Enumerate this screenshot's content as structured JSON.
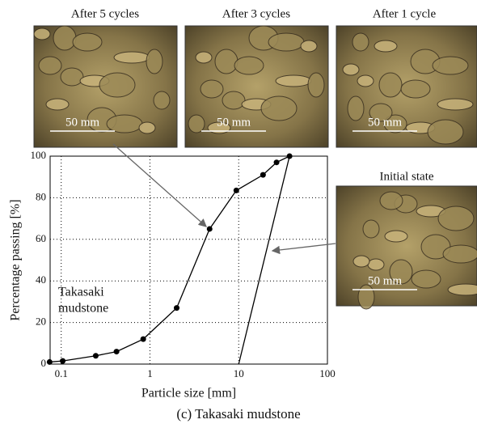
{
  "chart_data": {
    "type": "line",
    "x_label": "Particle size [mm]",
    "y_label": "Percentage passing [%]",
    "caption": "(c) Takasaki mudstone",
    "annotation": [
      "Takasaki",
      "mudstone"
    ],
    "log_x": true,
    "grid": true,
    "xlim": [
      0.075,
      100
    ],
    "ylim": [
      0,
      100
    ],
    "xticks": [
      0.1,
      1,
      10,
      100
    ],
    "yticks": [
      0,
      20,
      40,
      60,
      80,
      100
    ],
    "series": [
      {
        "name": "After 5 cycles",
        "color": "#000000",
        "markers": true,
        "x": [
          0.074,
          0.104,
          0.245,
          0.42,
          0.84,
          2.0,
          4.7,
          9.4,
          18.8,
          26.7,
          37.4
        ],
        "values": [
          1,
          1.5,
          4,
          6,
          12,
          27,
          65,
          83.5,
          91,
          97,
          100
        ]
      },
      {
        "name": "Initial state",
        "color": "#000000",
        "markers": false,
        "x": [
          10,
          37.4
        ],
        "values": [
          0,
          100
        ]
      }
    ],
    "images": [
      {
        "label": "After 5 cycles",
        "scale": "50 mm"
      },
      {
        "label": "After 3 cycles",
        "scale": "50 mm"
      },
      {
        "label": "After 1 cycle",
        "scale": "50 mm"
      },
      {
        "label": "Initial state",
        "scale": "50 mm"
      }
    ]
  }
}
